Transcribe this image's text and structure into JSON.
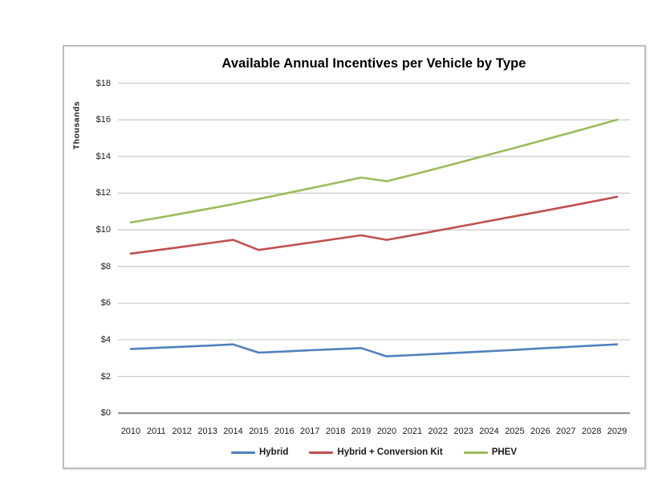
{
  "page": {
    "background": "#ffffff"
  },
  "chart": {
    "title": "Available Annual Incentives per Vehicle by Type",
    "y_axis_label": "Thousands"
  },
  "chart_data": {
    "type": "line",
    "title": "Available Annual Incentives per Vehicle by Type",
    "xlabel": "",
    "ylabel": "Thousands",
    "ylim": [
      0,
      18
    ],
    "grid": true,
    "legend_position": "bottom",
    "y_ticks": [
      "$0",
      "$2",
      "$4",
      "$6",
      "$8",
      "$10",
      "$12",
      "$14",
      "$16",
      "$18"
    ],
    "y_tick_values": [
      0,
      2,
      4,
      6,
      8,
      10,
      12,
      14,
      16,
      18
    ],
    "categories": [
      "2010",
      "2011",
      "2012",
      "2013",
      "2014",
      "2015",
      "2016",
      "2017",
      "2018",
      "2019",
      "2020",
      "2021",
      "2022",
      "2023",
      "2024",
      "2025",
      "2026",
      "2027",
      "2028",
      "2029"
    ],
    "series": [
      {
        "name": "Hybrid",
        "color": "#4F81BD",
        "values": [
          3.5,
          3.56,
          3.62,
          3.68,
          3.75,
          3.3,
          3.36,
          3.43,
          3.49,
          3.55,
          3.1,
          3.17,
          3.24,
          3.31,
          3.38,
          3.45,
          3.53,
          3.6,
          3.68,
          3.75
        ]
      },
      {
        "name": "Hybrid + Conversion Kit",
        "color": "#C0504D",
        "values": [
          8.7,
          8.88,
          9.07,
          9.26,
          9.45,
          8.9,
          9.1,
          9.3,
          9.5,
          9.7,
          9.45,
          9.7,
          9.96,
          10.22,
          10.48,
          10.74,
          11.0,
          11.26,
          11.53,
          11.8
        ]
      },
      {
        "name": "PHEV",
        "color": "#9BBB59",
        "values": [
          10.4,
          10.64,
          10.89,
          11.14,
          11.4,
          11.68,
          11.97,
          12.26,
          12.55,
          12.85,
          12.65,
          13.0,
          13.36,
          13.73,
          14.1,
          14.47,
          14.85,
          15.23,
          15.61,
          16.0
        ]
      }
    ],
    "gridline_color": "#C3C3C3",
    "axis_line_color": "#7F7F7F"
  }
}
